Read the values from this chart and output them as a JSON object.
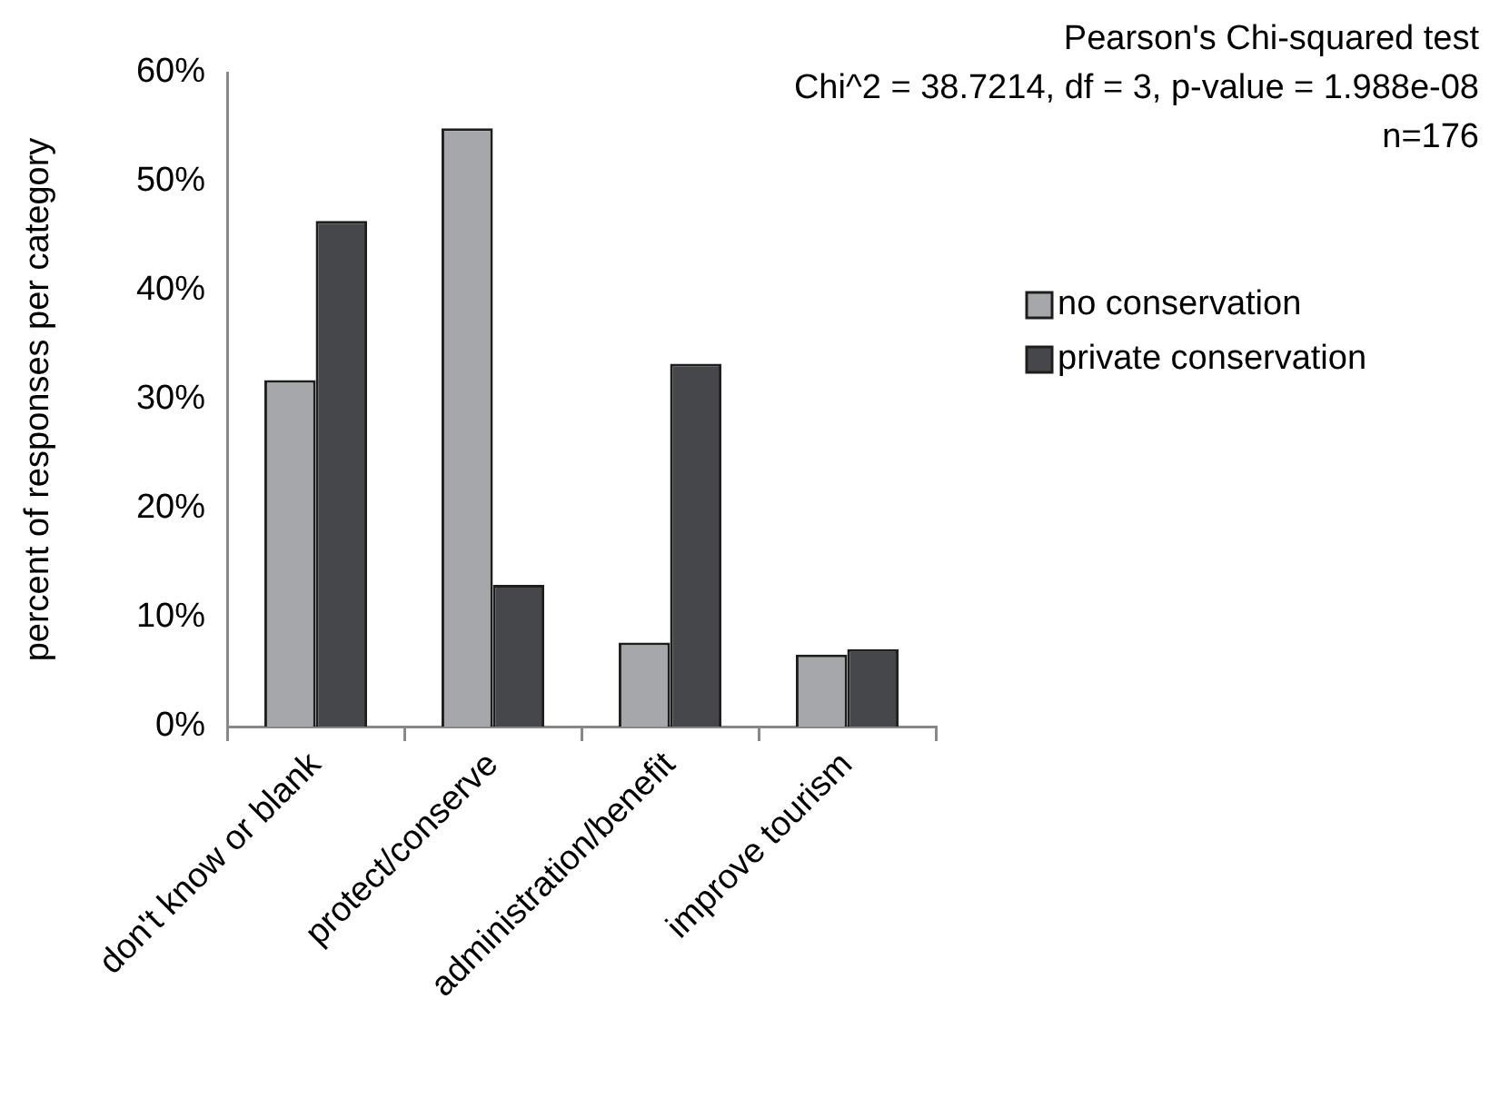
{
  "chart_data": {
    "type": "bar",
    "ylabel": "percent of responses per category",
    "categories": [
      "don't know or blank",
      "protect/conserve",
      "administration/benefit",
      "improve tourism"
    ],
    "series": [
      {
        "name": "no conservation",
        "color": "#a6a7aa",
        "values": [
          31.8,
          54.9,
          7.7,
          6.6
        ]
      },
      {
        "name": "private conservation",
        "color": "#46474a",
        "values": [
          46.4,
          13.0,
          33.3,
          7.1
        ]
      }
    ],
    "ylim": [
      0,
      60
    ],
    "yticks": [
      {
        "value": 0,
        "label": "0%"
      },
      {
        "value": 10,
        "label": "10%"
      },
      {
        "value": 20,
        "label": "20%"
      },
      {
        "value": 30,
        "label": "30%"
      },
      {
        "value": 40,
        "label": "40%"
      },
      {
        "value": 50,
        "label": "50%"
      },
      {
        "value": 60,
        "label": "60%"
      }
    ],
    "legend": "right",
    "annotations": [
      "Pearson's Chi-squared test",
      "Chi^2 = 38.7214, df = 3, p-value = 1.988e-08",
      "n=176"
    ]
  }
}
